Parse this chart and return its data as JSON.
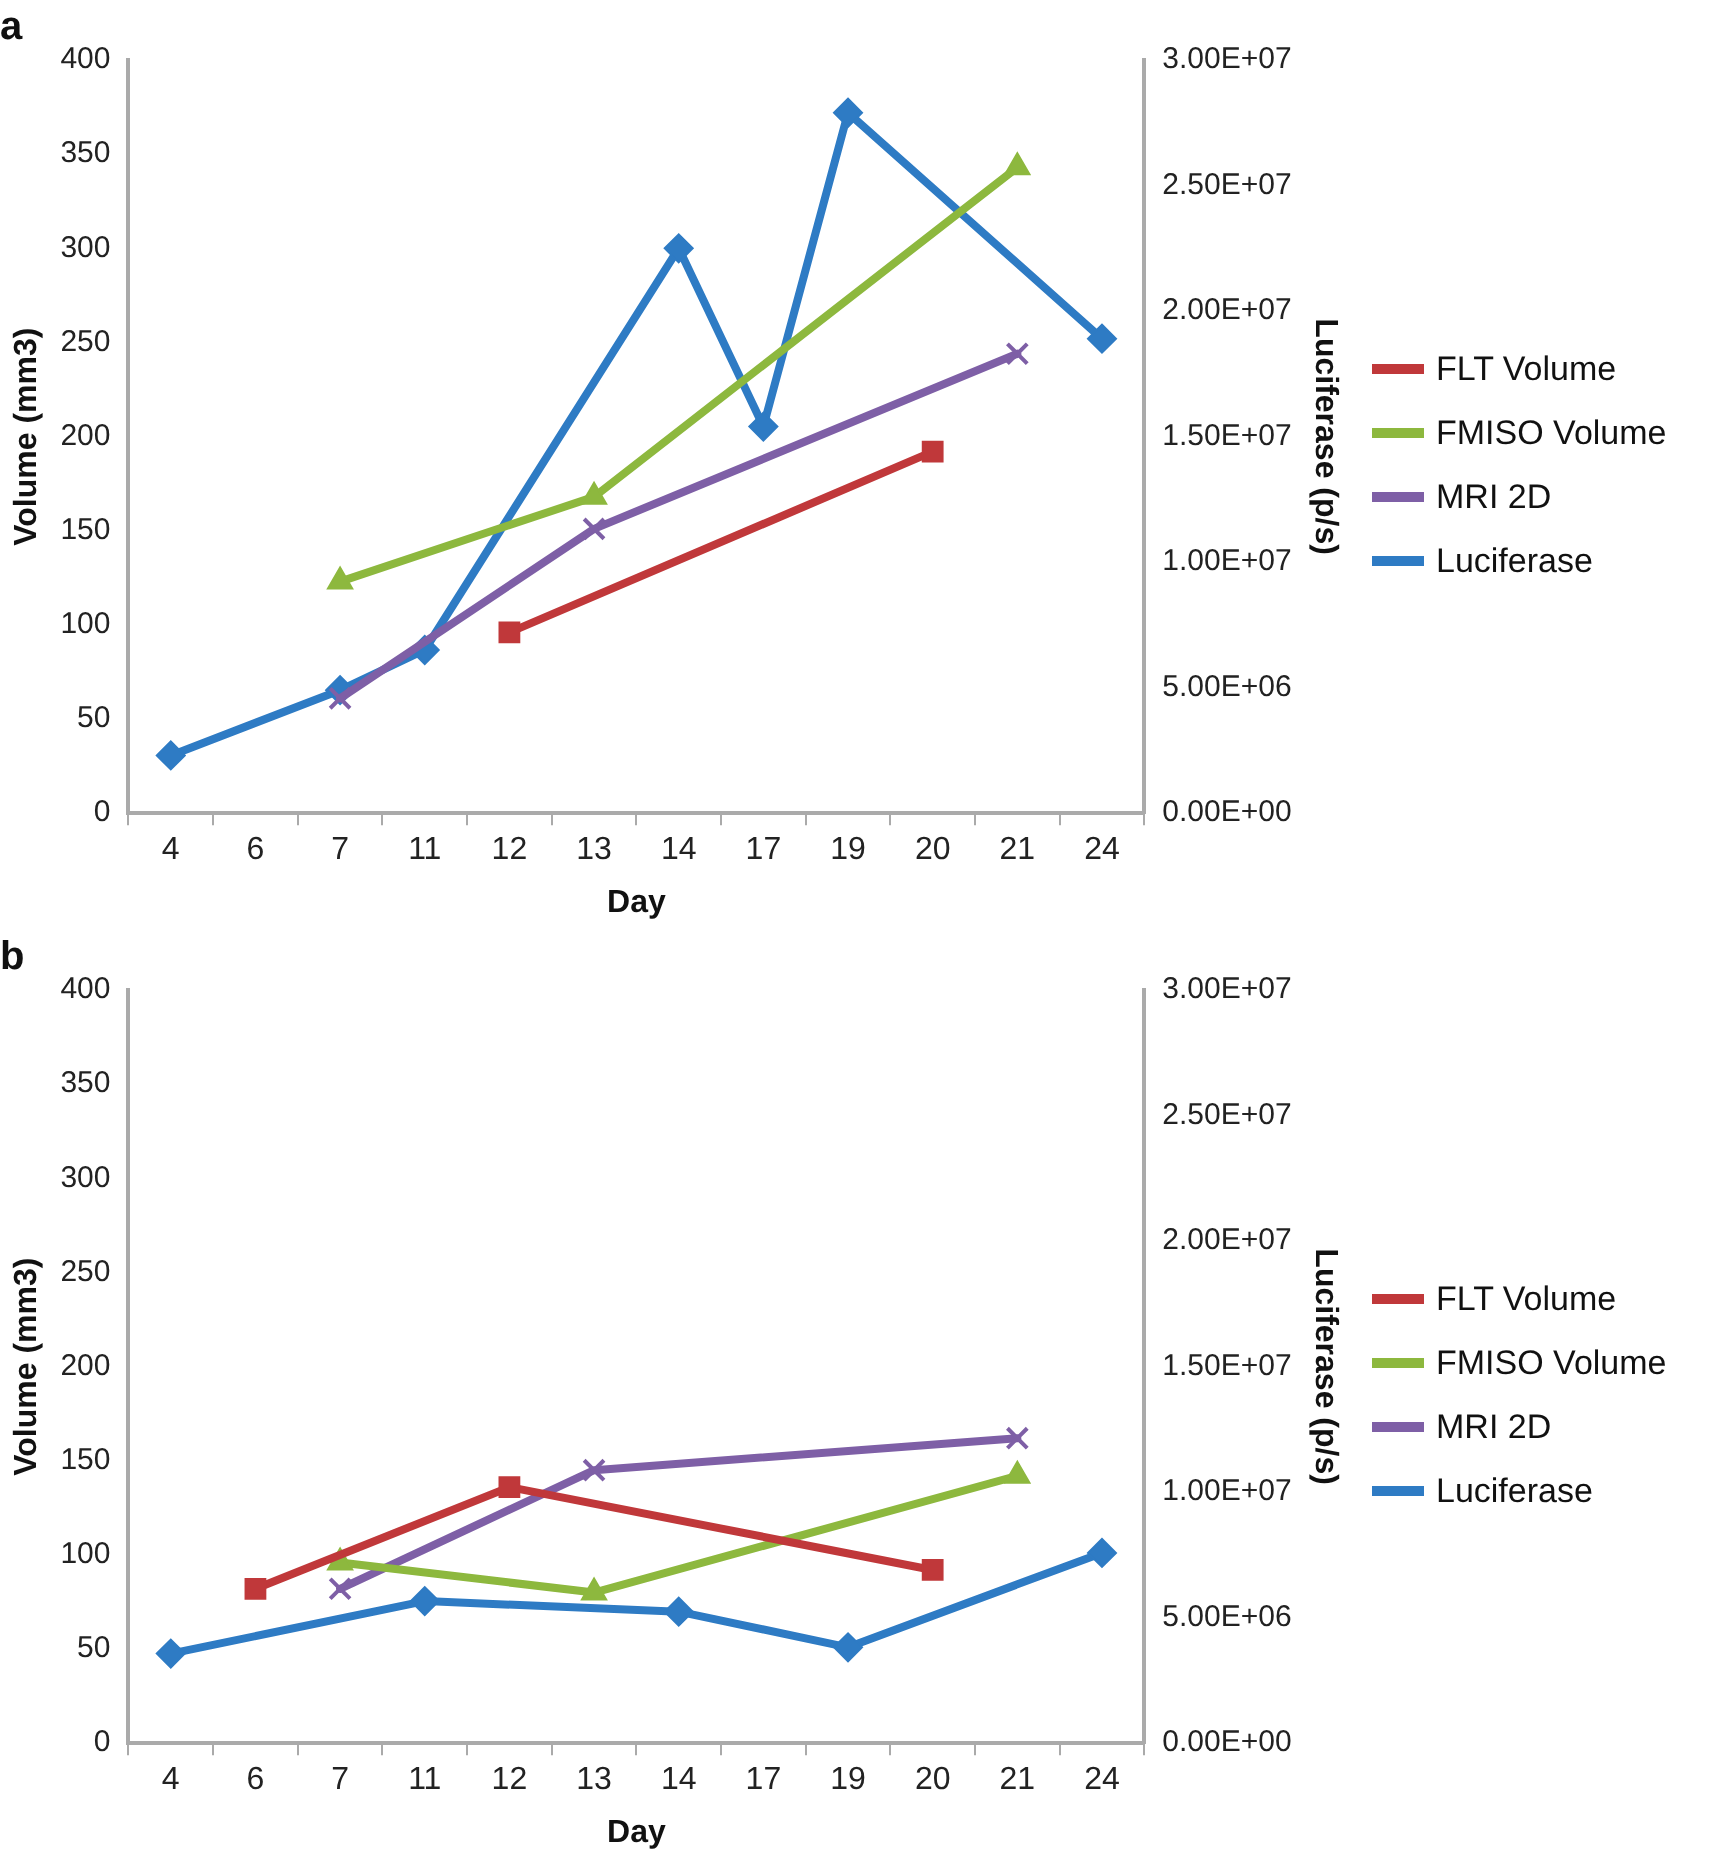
{
  "chart_data": [
    {
      "type": "line",
      "title": "a",
      "xlabel": "Day",
      "ylabel": "Volume (mm3)",
      "y2label": "Luciferase (p/s)",
      "categories": [
        "4",
        "6",
        "7",
        "11",
        "12",
        "13",
        "14",
        "17",
        "19",
        "20",
        "21",
        "24"
      ],
      "series": [
        {
          "name": "FLT Volume",
          "color": "#c0383a",
          "marker": "square",
          "values": [
            null,
            null,
            null,
            null,
            96,
            null,
            null,
            null,
            null,
            192,
            null,
            null
          ]
        },
        {
          "name": "FMISO Volume",
          "color": "#8db83e",
          "marker": "triangle",
          "values": [
            null,
            null,
            123,
            null,
            null,
            168,
            null,
            null,
            null,
            null,
            343,
            null
          ]
        },
        {
          "name": "MRI 2D",
          "color": "#7e5fa6",
          "marker": "cross",
          "values": [
            null,
            null,
            61,
            null,
            null,
            151,
            null,
            null,
            null,
            null,
            244,
            null
          ]
        },
        {
          "name": "Luciferase",
          "color": "#2e7bc4",
          "marker": "diamond",
          "axis": "y2",
          "values": [
            2300000,
            null,
            4900000,
            6500000,
            null,
            null,
            22500000,
            15400000,
            27900000,
            null,
            null,
            18900000
          ]
        }
      ],
      "ylim": [
        0,
        400
      ],
      "yticks": [
        0,
        50,
        100,
        150,
        200,
        250,
        300,
        350,
        400
      ],
      "y2lim": [
        0,
        30000000
      ],
      "y2ticks": [
        {
          "value": 0,
          "label": "0.00E+00"
        },
        {
          "value": 5000000,
          "label": "5.00E+06"
        },
        {
          "value": 10000000,
          "label": "1.00E+07"
        },
        {
          "value": 15000000,
          "label": "1.50E+07"
        },
        {
          "value": 20000000,
          "label": "2.00E+07"
        },
        {
          "value": 25000000,
          "label": "2.50E+07"
        },
        {
          "value": 30000000,
          "label": "3.00E+07"
        }
      ],
      "grid": false,
      "legend": "right"
    },
    {
      "type": "line",
      "title": "b",
      "xlabel": "Day",
      "ylabel": "Volume (mm3)",
      "y2label": "Luciferase (p/s)",
      "categories": [
        "4",
        "6",
        "7",
        "11",
        "12",
        "13",
        "14",
        "17",
        "19",
        "20",
        "21",
        "24"
      ],
      "series": [
        {
          "name": "FLT Volume",
          "color": "#c0383a",
          "marker": "square",
          "values": [
            null,
            82,
            null,
            null,
            136,
            null,
            null,
            null,
            null,
            92,
            null,
            null
          ]
        },
        {
          "name": "FMISO Volume",
          "color": "#8db83e",
          "marker": "triangle",
          "values": [
            null,
            null,
            96,
            null,
            null,
            80,
            null,
            null,
            null,
            null,
            142,
            null
          ]
        },
        {
          "name": "MRI 2D",
          "color": "#7e5fa6",
          "marker": "cross",
          "values": [
            null,
            null,
            82,
            null,
            null,
            145,
            null,
            null,
            null,
            null,
            162,
            null
          ]
        },
        {
          "name": "Luciferase",
          "color": "#2e7bc4",
          "marker": "diamond",
          "axis": "y2",
          "values": [
            3570000,
            null,
            null,
            5660000,
            null,
            null,
            5240000,
            null,
            3820000,
            null,
            null,
            7580000
          ]
        }
      ],
      "ylim": [
        0,
        400
      ],
      "yticks": [
        0,
        50,
        100,
        150,
        200,
        250,
        300,
        350,
        400
      ],
      "y2lim": [
        0,
        30000000
      ],
      "y2ticks": [
        {
          "value": 0,
          "label": "0.00E+00"
        },
        {
          "value": 5000000,
          "label": "5.00E+06"
        },
        {
          "value": 10000000,
          "label": "1.00E+07"
        },
        {
          "value": 15000000,
          "label": "1.50E+07"
        },
        {
          "value": 20000000,
          "label": "2.00E+07"
        },
        {
          "value": 25000000,
          "label": "2.50E+07"
        },
        {
          "value": 30000000,
          "label": "3.00E+07"
        }
      ],
      "grid": false,
      "legend": "right"
    }
  ]
}
